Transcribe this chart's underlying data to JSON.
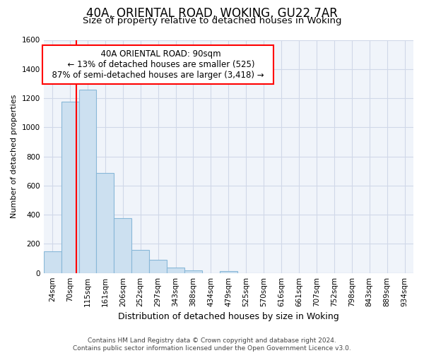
{
  "title": "40A, ORIENTAL ROAD, WOKING, GU22 7AR",
  "subtitle": "Size of property relative to detached houses in Woking",
  "xlabel": "Distribution of detached houses by size in Woking",
  "ylabel": "Number of detached properties",
  "bar_labels": [
    "24sqm",
    "70sqm",
    "115sqm",
    "161sqm",
    "206sqm",
    "252sqm",
    "297sqm",
    "343sqm",
    "388sqm",
    "434sqm",
    "479sqm",
    "525sqm",
    "570sqm",
    "616sqm",
    "661sqm",
    "707sqm",
    "752sqm",
    "798sqm",
    "843sqm",
    "889sqm",
    "934sqm"
  ],
  "bar_values": [
    150,
    1175,
    1260,
    685,
    375,
    160,
    90,
    35,
    20,
    0,
    15,
    0,
    0,
    0,
    0,
    0,
    0,
    0,
    0,
    0,
    0
  ],
  "bar_color": "#cce0f0",
  "bar_edge_color": "#88b8d8",
  "ylim": [
    0,
    1600
  ],
  "yticks": [
    0,
    200,
    400,
    600,
    800,
    1000,
    1200,
    1400,
    1600
  ],
  "red_line_x": 1.35,
  "annotation_line1": "40A ORIENTAL ROAD: 90sqm",
  "annotation_line2": "← 13% of detached houses are smaller (525)",
  "annotation_line3": "87% of semi-detached houses are larger (3,418) →",
  "footer_line1": "Contains HM Land Registry data © Crown copyright and database right 2024.",
  "footer_line2": "Contains public sector information licensed under the Open Government Licence v3.0.",
  "grid_color": "#d0d8e8",
  "title_fontsize": 12,
  "subtitle_fontsize": 9.5,
  "annotation_fontsize": 8.5,
  "tick_fontsize": 7.5,
  "footer_fontsize": 6.5
}
